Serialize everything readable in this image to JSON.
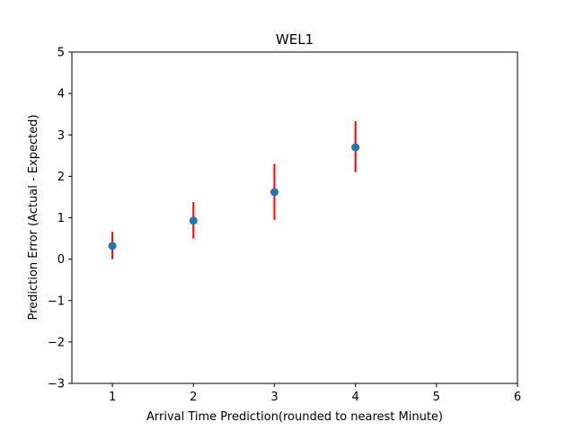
{
  "chart_data": {
    "type": "scatter",
    "title": "WEL1",
    "xlabel": "Arrival Time Prediction(rounded to nearest Minute)",
    "ylabel": "Prediction Error (Actual - Expected)",
    "xlim": [
      0.5,
      6
    ],
    "ylim": [
      -3,
      5
    ],
    "xticks": [
      1,
      2,
      3,
      4,
      5,
      6
    ],
    "yticks": [
      -3,
      -2,
      -1,
      0,
      1,
      2,
      3,
      4,
      5
    ],
    "xtick_labels": [
      "1",
      "2",
      "3",
      "4",
      "5",
      "6"
    ],
    "ytick_labels": [
      "−3",
      "−2",
      "−1",
      "0",
      "1",
      "2",
      "3",
      "4",
      "5"
    ],
    "grid": false,
    "points": [
      {
        "x": 1,
        "y": 0.32,
        "err_low": 0.0,
        "err_high": 0.66
      },
      {
        "x": 2,
        "y": 0.93,
        "err_low": 0.5,
        "err_high": 1.38
      },
      {
        "x": 3,
        "y": 1.62,
        "err_low": 0.95,
        "err_high": 2.3
      },
      {
        "x": 4,
        "y": 2.7,
        "err_low": 2.1,
        "err_high": 3.33
      }
    ],
    "marker_color": "#1f77b4",
    "errorbar_color": "#ff0000"
  }
}
